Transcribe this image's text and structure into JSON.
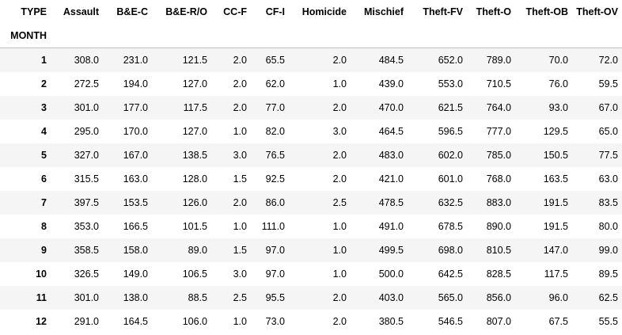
{
  "table": {
    "columns_name": "TYPE",
    "index_name": "MONTH",
    "columns": [
      "Assault",
      "B&E-C",
      "B&E-R/O",
      "CC-F",
      "CF-I",
      "Homicide",
      "Mischief",
      "Theft-FV",
      "Theft-O",
      "Theft-OB",
      "Theft-OV"
    ],
    "rows": [
      {
        "index": "1",
        "values": [
          "308.0",
          "231.0",
          "121.5",
          "2.0",
          "65.5",
          "2.0",
          "484.5",
          "652.0",
          "789.0",
          "70.0",
          "72.0"
        ]
      },
      {
        "index": "2",
        "values": [
          "272.5",
          "194.0",
          "127.0",
          "2.0",
          "62.0",
          "1.0",
          "439.0",
          "553.0",
          "710.5",
          "76.0",
          "59.5"
        ]
      },
      {
        "index": "3",
        "values": [
          "301.0",
          "177.0",
          "117.5",
          "2.0",
          "77.0",
          "2.0",
          "470.0",
          "621.5",
          "764.0",
          "93.0",
          "67.0"
        ]
      },
      {
        "index": "4",
        "values": [
          "295.0",
          "170.0",
          "127.0",
          "1.0",
          "82.0",
          "3.0",
          "464.5",
          "596.5",
          "777.0",
          "129.5",
          "65.0"
        ]
      },
      {
        "index": "5",
        "values": [
          "327.0",
          "167.0",
          "138.5",
          "3.0",
          "76.5",
          "2.0",
          "483.0",
          "602.0",
          "785.0",
          "150.5",
          "77.5"
        ]
      },
      {
        "index": "6",
        "values": [
          "315.5",
          "163.0",
          "128.0",
          "1.5",
          "92.5",
          "2.0",
          "421.0",
          "601.0",
          "768.0",
          "163.5",
          "63.0"
        ]
      },
      {
        "index": "7",
        "values": [
          "397.5",
          "153.5",
          "126.0",
          "2.0",
          "86.0",
          "2.5",
          "478.5",
          "632.5",
          "883.0",
          "191.5",
          "83.5"
        ]
      },
      {
        "index": "8",
        "values": [
          "353.0",
          "166.5",
          "101.5",
          "1.0",
          "111.0",
          "1.0",
          "491.0",
          "678.5",
          "890.0",
          "191.5",
          "80.0"
        ]
      },
      {
        "index": "9",
        "values": [
          "358.5",
          "158.0",
          "89.0",
          "1.5",
          "97.0",
          "1.0",
          "499.5",
          "698.0",
          "810.5",
          "147.0",
          "99.0"
        ]
      },
      {
        "index": "10",
        "values": [
          "326.5",
          "149.0",
          "106.5",
          "3.0",
          "97.0",
          "1.0",
          "500.0",
          "642.5",
          "828.5",
          "117.5",
          "89.5"
        ]
      },
      {
        "index": "11",
        "values": [
          "301.0",
          "138.0",
          "88.5",
          "2.5",
          "95.5",
          "2.0",
          "403.0",
          "565.0",
          "856.0",
          "96.0",
          "62.5"
        ]
      },
      {
        "index": "12",
        "values": [
          "291.0",
          "164.5",
          "106.0",
          "1.0",
          "73.0",
          "2.0",
          "380.5",
          "546.5",
          "807.0",
          "67.5",
          "55.5"
        ]
      }
    ]
  }
}
